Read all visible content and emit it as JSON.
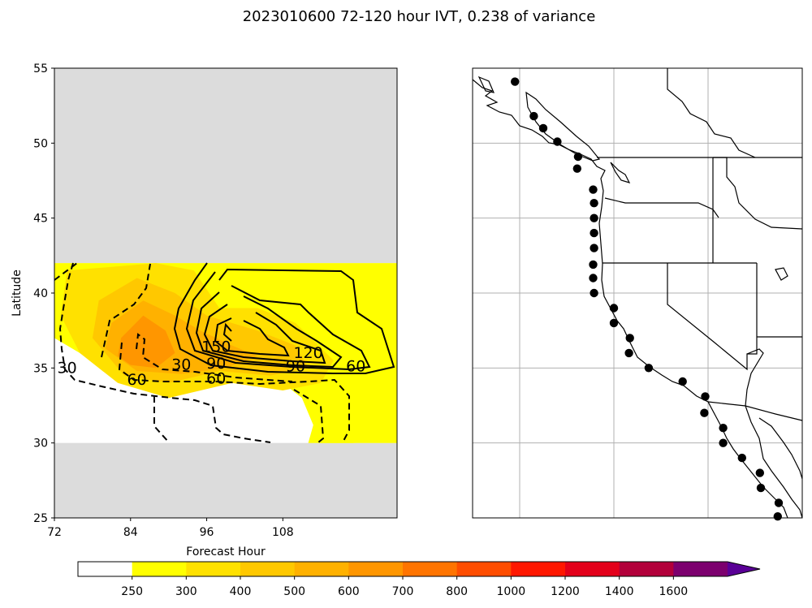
{
  "figure": {
    "title": "2023010600 72-120 hour IVT, 0.238 of variance"
  },
  "chart_data": [
    {
      "type": "heatmap",
      "panel": "left",
      "xlabel": "Forecast Hour",
      "ylabel": "Latitude",
      "xlim": [
        72,
        126
      ],
      "ylim": [
        25,
        55
      ],
      "x_ticks": [
        "72",
        "84",
        "96",
        "108"
      ],
      "y_ticks": [
        "25",
        "30",
        "35",
        "40",
        "45",
        "50",
        "55"
      ],
      "no_data_bands": [
        [
          25,
          30
        ],
        [
          42,
          55
        ]
      ],
      "filled_levels": [
        {
          "min": 250,
          "region": "main",
          "outline": [
            [
              72,
              42
            ],
            [
              126,
              42
            ],
            [
              126,
              30
            ],
            [
              114,
              30
            ],
            [
              111,
              33
            ],
            [
              108,
              34
            ],
            [
              100,
              34.5
            ],
            [
              90,
              33.5
            ],
            [
              84,
              34
            ],
            [
              78,
              35.5
            ],
            [
              72,
              37
            ]
          ]
        },
        {
          "min": 300,
          "region": "main",
          "outline": [
            [
              74,
              41.5
            ],
            [
              88,
              42
            ],
            [
              94,
              41.5
            ],
            [
              98,
              39
            ],
            [
              104,
              39
            ],
            [
              110,
              38
            ],
            [
              116,
              35.5
            ],
            [
              114,
              34
            ],
            [
              108,
              33.5
            ],
            [
              100,
              34
            ],
            [
              90,
              33
            ],
            [
              82,
              34
            ],
            [
              76,
              36
            ],
            [
              73,
              38.5
            ]
          ]
        },
        {
          "min": 400,
          "region": "main",
          "outline": [
            [
              79,
              39.5
            ],
            [
              85,
              41
            ],
            [
              91,
              40
            ],
            [
              96,
              38.5
            ],
            [
              104,
              37.5
            ],
            [
              110,
              36.5
            ],
            [
              112,
              35
            ],
            [
              106,
              34.5
            ],
            [
              98,
              34.8
            ],
            [
              90,
              34
            ],
            [
              83,
              34.5
            ],
            [
              78,
              37
            ]
          ]
        },
        {
          "min": 500,
          "region": "main",
          "outline": [
            [
              81,
              38
            ],
            [
              86,
              39.5
            ],
            [
              91,
              38.5
            ],
            [
              95,
              37.5
            ],
            [
              100,
              36.5
            ],
            [
              104,
              35.8
            ],
            [
              99,
              35
            ],
            [
              92,
              34.6
            ],
            [
              85,
              34.8
            ],
            [
              80,
              36.3
            ]
          ]
        },
        {
          "min": 600,
          "region": "main",
          "outline": [
            [
              82.5,
              37
            ],
            [
              86,
              38.5
            ],
            [
              89.5,
              37.5
            ],
            [
              91,
              36
            ],
            [
              88,
              35
            ],
            [
              84,
              35.2
            ],
            [
              82,
              35.8
            ]
          ]
        },
        {
          "min": 250,
          "region": "east",
          "outline": [
            [
              120,
              34.5
            ],
            [
              126,
              34
            ],
            [
              126,
              30.2
            ],
            [
              119,
              30
            ],
            [
              112,
              30
            ],
            [
              113,
              31.5
            ],
            [
              117,
              33
            ]
          ]
        }
      ],
      "contours": [
        {
          "label": "30",
          "style": "dashed"
        },
        {
          "label": "60",
          "style": "dashed"
        },
        {
          "label": "30",
          "style": "solid"
        },
        {
          "label": "60",
          "style": "solid"
        },
        {
          "label": "90",
          "style": "solid"
        },
        {
          "label": "120",
          "style": "solid"
        },
        {
          "label": "150",
          "style": "solid"
        }
      ],
      "contour_labels": [
        {
          "text": "30",
          "x": 74,
          "y": 35
        },
        {
          "text": "60",
          "x": 85,
          "y": 34.2
        },
        {
          "text": "30",
          "x": 92,
          "y": 35.2
        },
        {
          "text": "60",
          "x": 97.5,
          "y": 34.3
        },
        {
          "text": "90",
          "x": 97.5,
          "y": 35.3
        },
        {
          "text": "150",
          "x": 97.5,
          "y": 36.4
        },
        {
          "text": "90",
          "x": 110,
          "y": 35.1
        },
        {
          "text": "120",
          "x": 112,
          "y": 36
        },
        {
          "text": "60",
          "x": 119.5,
          "y": 35.1
        }
      ]
    },
    {
      "type": "scatter",
      "panel": "right-map",
      "lon_range": [
        -135,
        -100
      ],
      "lat_range": [
        25,
        55
      ],
      "gridlines_lon": [
        -130,
        -120,
        -110,
        -100
      ],
      "gridlines_lat": [
        30,
        35,
        40,
        45,
        50
      ],
      "points": [
        {
          "lon": -130.5,
          "lat": 54.1
        },
        {
          "lon": -128.5,
          "lat": 51.8
        },
        {
          "lon": -127.5,
          "lat": 51
        },
        {
          "lon": -126,
          "lat": 50.1
        },
        {
          "lon": -123.8,
          "lat": 49.1
        },
        {
          "lon": -123.9,
          "lat": 48.3
        },
        {
          "lon": -122.2,
          "lat": 46.9
        },
        {
          "lon": -122.1,
          "lat": 46.0
        },
        {
          "lon": -122.1,
          "lat": 45.0
        },
        {
          "lon": -122.1,
          "lat": 44.0
        },
        {
          "lon": -122.1,
          "lat": 43.0
        },
        {
          "lon": -122.2,
          "lat": 41.9
        },
        {
          "lon": -122.2,
          "lat": 41.0
        },
        {
          "lon": -122.1,
          "lat": 40.0
        },
        {
          "lon": -120.0,
          "lat": 39.0
        },
        {
          "lon": -120.0,
          "lat": 38.0
        },
        {
          "lon": -118.3,
          "lat": 37.0
        },
        {
          "lon": -118.4,
          "lat": 36.0
        },
        {
          "lon": -116.3,
          "lat": 35.0
        },
        {
          "lon": -112.7,
          "lat": 34.1
        },
        {
          "lon": -110.3,
          "lat": 33.1
        },
        {
          "lon": -110.4,
          "lat": 32.0
        },
        {
          "lon": -108.4,
          "lat": 31.0
        },
        {
          "lon": -108.4,
          "lat": 30.0
        },
        {
          "lon": -106.4,
          "lat": 29.0
        },
        {
          "lon": -104.5,
          "lat": 28.0
        },
        {
          "lon": -104.4,
          "lat": 27.0
        },
        {
          "lon": -102.5,
          "lat": 26.0
        },
        {
          "lon": -102.6,
          "lat": 25.1
        }
      ]
    }
  ],
  "colorbar": {
    "levels": [
      "250",
      "300",
      "400",
      "500",
      "600",
      "700",
      "800",
      "1000",
      "1200",
      "1400",
      "1600"
    ],
    "colors": [
      "#ffffff",
      "#ffff00",
      "#ffe100",
      "#ffc800",
      "#ffb100",
      "#ff9600",
      "#ff7400",
      "#ff4d00",
      "#ff1700",
      "#e3001a",
      "#b2003a",
      "#7c006e",
      "#5a0096"
    ]
  },
  "colors": {
    "nodata": "#dcdcdc",
    "contour": "#000000",
    "grid": "#b0b0b0",
    "points": "#000000"
  }
}
